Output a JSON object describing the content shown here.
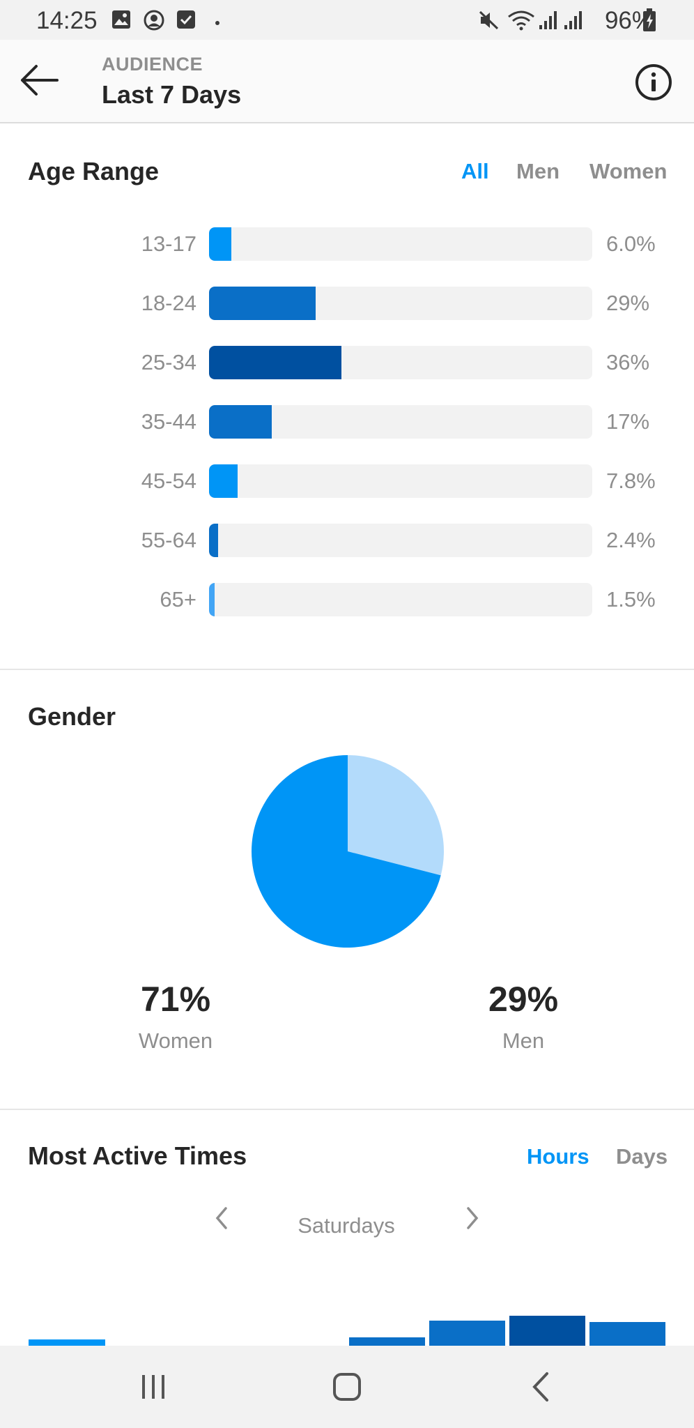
{
  "status_bar": {
    "time": "14:25",
    "battery": "96%",
    "icons": [
      "image-icon",
      "profile-icon",
      "check-icon",
      "dot-icon",
      "mute-icon",
      "wifi-icon",
      "signal-icon",
      "signal-icon",
      "battery-icon"
    ]
  },
  "header": {
    "subtitle": "AUDIENCE",
    "title": "Last 7 Days"
  },
  "age_range": {
    "title": "Age Range",
    "filters": [
      "All",
      "Men",
      "Women"
    ],
    "active_filter": "All",
    "rows": [
      {
        "label": "13-17",
        "value": "6.0%",
        "fraction": 0.06,
        "color": "#0095f6"
      },
      {
        "label": "18-24",
        "value": "29%",
        "fraction": 0.29,
        "color": "#0a6fc7"
      },
      {
        "label": "25-34",
        "value": "36%",
        "fraction": 0.36,
        "color": "#0050a0"
      },
      {
        "label": "35-44",
        "value": "17%",
        "fraction": 0.17,
        "color": "#0a6fc7"
      },
      {
        "label": "45-54",
        "value": "7.8%",
        "fraction": 0.078,
        "color": "#0095f6"
      },
      {
        "label": "55-64",
        "value": "2.4%",
        "fraction": 0.024,
        "color": "#0a6fc7"
      },
      {
        "label": "65+",
        "value": "1.5%",
        "fraction": 0.015,
        "color": "#42a5f5"
      }
    ]
  },
  "gender": {
    "title": "Gender",
    "women_pct": "71%",
    "women_label": "Women",
    "men_pct": "29%",
    "men_label": "Men",
    "colors": {
      "women": "#0095f6",
      "men": "#b3dbfb"
    }
  },
  "most_active": {
    "title": "Most Active Times",
    "tabs": [
      "Hours",
      "Days"
    ],
    "active_tab": "Hours",
    "day": "Saturdays"
  },
  "chart_data": [
    {
      "type": "bar",
      "title": "Age Range",
      "categories": [
        "13-17",
        "18-24",
        "25-34",
        "35-44",
        "45-54",
        "55-64",
        "65+"
      ],
      "values": [
        6.0,
        29,
        36,
        17,
        7.8,
        2.4,
        1.5
      ]
    },
    {
      "type": "pie",
      "title": "Gender",
      "categories": [
        "Women",
        "Men"
      ],
      "values": [
        71,
        29
      ]
    }
  ],
  "colors": {
    "accent": "#0095f6",
    "muted_text": "#8e8e8e",
    "track": "#f2f2f2"
  }
}
